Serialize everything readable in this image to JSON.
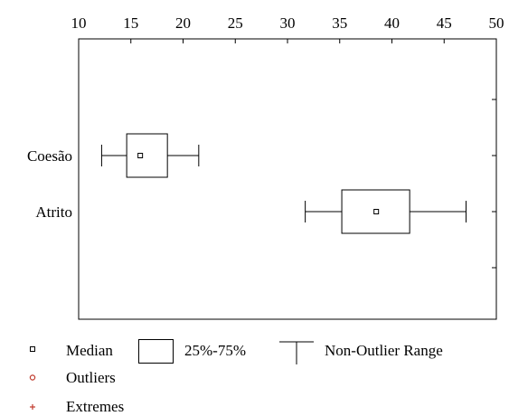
{
  "chart_data": {
    "type": "box",
    "orientation": "horizontal",
    "x_axis_position": "top",
    "xlim": [
      10,
      50
    ],
    "xticks": [
      10,
      15,
      20,
      25,
      30,
      35,
      40,
      45,
      50
    ],
    "categories": [
      "Coesão",
      "Atrito"
    ],
    "series": [
      {
        "label": "Coesão",
        "median": 15.9,
        "q1": 14.6,
        "q3": 18.5,
        "whisker_low": 12.2,
        "whisker_high": 21.5
      },
      {
        "label": "Atrito",
        "median": 38.5,
        "q1": 35.2,
        "q3": 41.7,
        "whisker_low": 31.7,
        "whisker_high": 47.1
      }
    ],
    "grid": false
  },
  "legend": {
    "median_label": "Median",
    "box_label": "25%-75%",
    "range_label": "Non-Outlier Range",
    "outliers_label": "Outliers",
    "extremes_label": "Extremes",
    "outlier_color": "#c0392b",
    "extreme_color": "#c0392b"
  }
}
